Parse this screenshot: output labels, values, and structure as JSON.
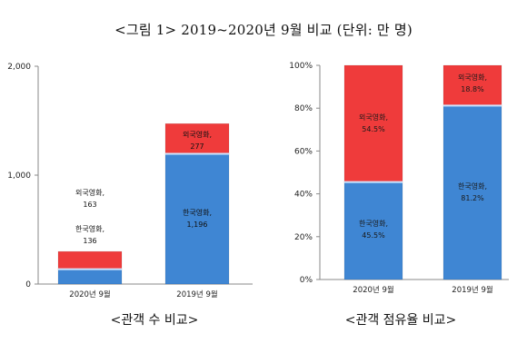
{
  "page": {
    "title": "<그림 1> 2019~2020년 9월 비교 (단위: 만 명)"
  },
  "chart_data": [
    {
      "type": "bar",
      "stacked": true,
      "caption": "<관객 수 비교>",
      "categories": [
        "2020년 9월",
        "2019년 9월"
      ],
      "yticks": [
        "0",
        "1,000",
        "2,000"
      ],
      "ylim": [
        0,
        2000
      ],
      "series": [
        {
          "values": [
            136,
            1196
          ],
          "labels": [
            [
              "한국영화,",
              "136"
            ],
            [
              "한국영화,",
              "1,196"
            ]
          ],
          "color": "#3f86d3"
        },
        {
          "values": [
            163,
            277
          ],
          "labels": [
            [
              "외국영화,",
              "163"
            ],
            [
              "외국영화,",
              "277"
            ]
          ],
          "color": "#ef3b3b"
        }
      ],
      "grid": false
    },
    {
      "type": "bar",
      "stacked": true,
      "caption": "<관객 점유율 비교>",
      "categories": [
        "2020년 9월",
        "2019년 9월"
      ],
      "yticks": [
        "0%",
        "20%",
        "40%",
        "60%",
        "80%",
        "100%"
      ],
      "ylim": [
        0,
        100
      ],
      "series": [
        {
          "values": [
            45.5,
            81.2
          ],
          "labels": [
            [
              "한국영화,",
              "45.5%"
            ],
            [
              "한국영화,",
              "81.2%"
            ]
          ],
          "color": "#3f86d3"
        },
        {
          "values": [
            54.5,
            18.8
          ],
          "labels": [
            [
              "외국영화,",
              "54.5%"
            ],
            [
              "외국영화,",
              "18.8%"
            ]
          ],
          "color": "#ef3b3b"
        }
      ],
      "grid": false
    }
  ]
}
